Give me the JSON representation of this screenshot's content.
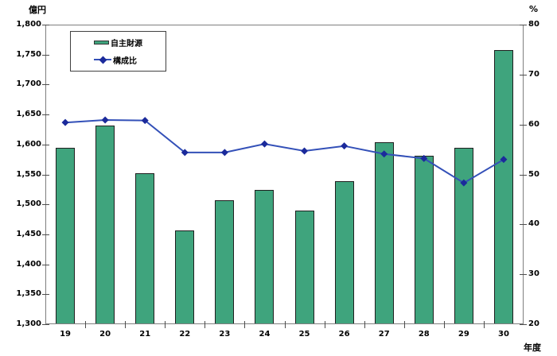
{
  "chart_data": {
    "type": "bar",
    "subtype": "bar-line-combo",
    "categories": [
      "19",
      "20",
      "21",
      "22",
      "23",
      "24",
      "25",
      "26",
      "27",
      "28",
      "29",
      "30"
    ],
    "series": [
      {
        "name": "自主財源",
        "type": "bar",
        "axis": "left",
        "unit": "億円",
        "color": "#3fa47d",
        "border_color": "#1f1f1f",
        "values": [
          1593,
          1630,
          1551,
          1455,
          1505,
          1523,
          1489,
          1537,
          1602,
          1580,
          1593,
          1756
        ]
      },
      {
        "name": "構成比",
        "type": "line",
        "axis": "right",
        "unit": "%",
        "line_color": "#3350b8",
        "marker": "diamond",
        "marker_color": "#1b2a9b",
        "values": [
          60.4,
          60.9,
          60.8,
          54.4,
          54.4,
          56.1,
          54.7,
          55.7,
          54.1,
          53.2,
          48.3,
          53.0
        ]
      }
    ],
    "left_axis": {
      "title": "億円",
      "min": 1300,
      "max": 1800,
      "step": 50,
      "tick_labels": [
        "1,800",
        "1,750",
        "1,700",
        "1,650",
        "1,600",
        "1,550",
        "1,500",
        "1,450",
        "1,400",
        "1,350",
        "1,300"
      ]
    },
    "right_axis": {
      "title": "%",
      "min": 20,
      "max": 80,
      "step": 10,
      "tick_labels": [
        "80",
        "70",
        "60",
        "50",
        "40",
        "30",
        "20"
      ]
    },
    "x_axis": {
      "title": "年度"
    },
    "legend": {
      "position": "top-left",
      "items": [
        {
          "label": "自主財源",
          "swatch": "bar"
        },
        {
          "label": "構成比",
          "swatch": "line-diamond"
        }
      ]
    },
    "grid": false,
    "plot_border_color": "#7f7f7f",
    "background": "#ffffff"
  }
}
